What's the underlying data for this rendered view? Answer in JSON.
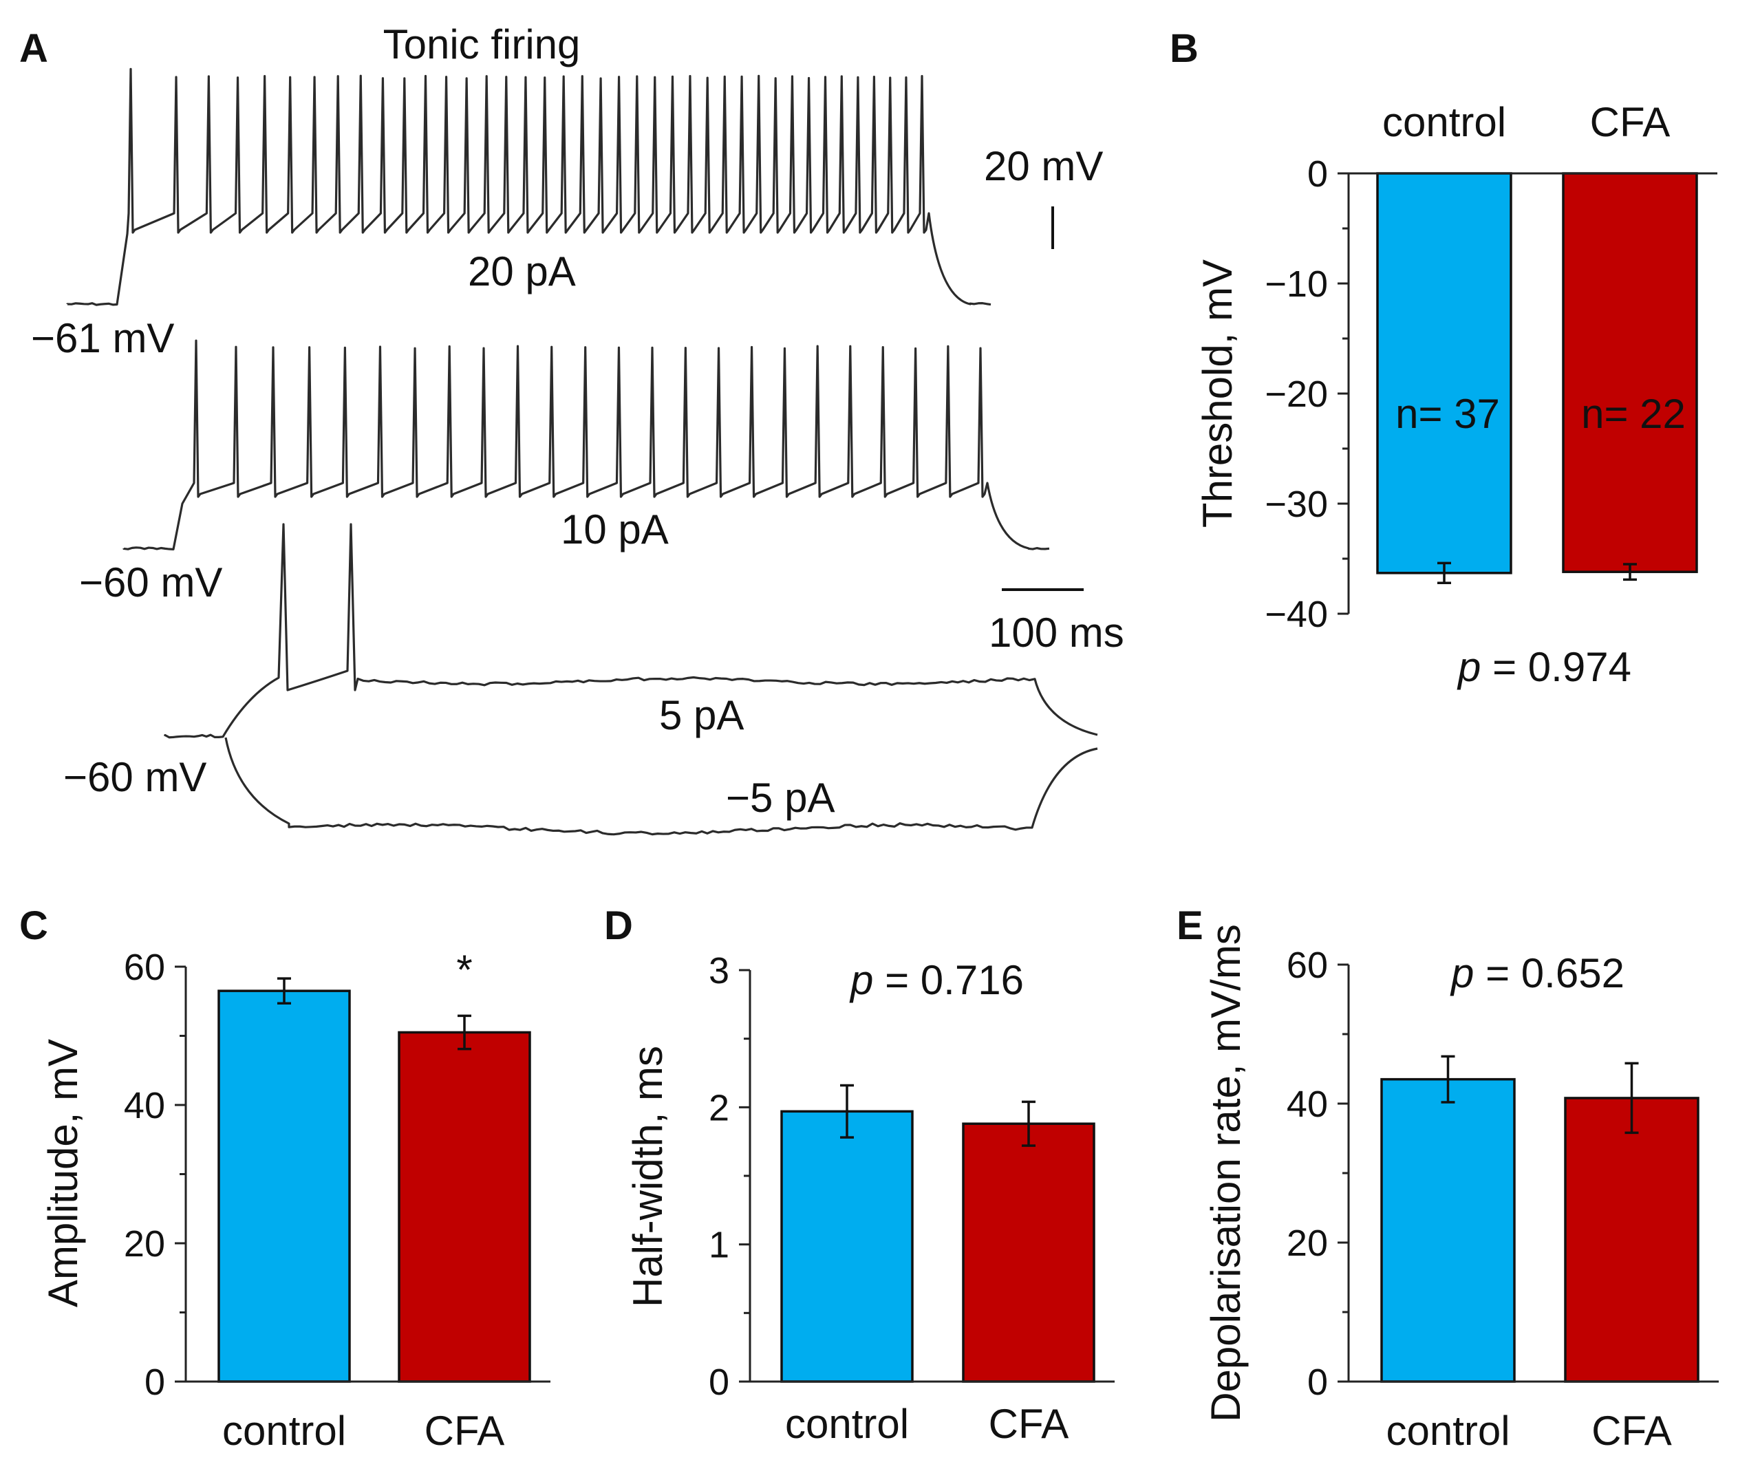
{
  "panel_A": {
    "letter": "A",
    "title": "Tonic firing",
    "traces": [
      {
        "stimulus": "20 pA",
        "resting": "−61 mV",
        "spikes": 40
      },
      {
        "stimulus": "10 pA",
        "resting": "−60 mV",
        "spikes": 24
      },
      {
        "stimulus": "5 pA",
        "resting": "−60 mV",
        "spikes": 2
      },
      {
        "stimulus": "−5 pA",
        "resting": "",
        "spikes": 0
      }
    ],
    "scale_voltage": "20 mV",
    "scale_time": "100 ms"
  },
  "chart_data": [
    {
      "id": "B",
      "type": "bar",
      "letter": "B",
      "categories": [
        "control",
        "CFA"
      ],
      "values": [
        -36.3,
        -36.2
      ],
      "errors": [
        0.9,
        0.7
      ],
      "colors": [
        "#00adef",
        "#c00000"
      ],
      "ylabel": "Threshold, mV",
      "ylim": [
        -40,
        0
      ],
      "yticks": [
        0,
        -10,
        -20,
        -30,
        -40
      ],
      "ytick_labels": [
        "0",
        "−10",
        "−20",
        "−30",
        "−40"
      ],
      "n_labels": [
        "n= 37",
        "n= 22"
      ],
      "p_prefix": "p",
      "p_value": " = 0.974",
      "significance": ""
    },
    {
      "id": "C",
      "type": "bar",
      "letter": "C",
      "categories": [
        "control",
        "CFA"
      ],
      "values": [
        56.5,
        50.5
      ],
      "errors": [
        1.8,
        2.4
      ],
      "colors": [
        "#00adef",
        "#c00000"
      ],
      "ylabel": "Amplitude, mV",
      "ylim": [
        0,
        60
      ],
      "yticks": [
        0,
        20,
        40,
        60
      ],
      "ytick_labels": [
        "0",
        "20",
        "40",
        "60"
      ],
      "p_prefix": "",
      "p_value": "",
      "significance": "*"
    },
    {
      "id": "D",
      "type": "bar",
      "letter": "D",
      "categories": [
        "control",
        "CFA"
      ],
      "values": [
        1.97,
        1.88
      ],
      "errors": [
        0.19,
        0.16
      ],
      "colors": [
        "#00adef",
        "#c00000"
      ],
      "ylabel": "Half-width, ms",
      "ylim": [
        0,
        3
      ],
      "yticks": [
        0,
        1,
        2,
        3
      ],
      "ytick_labels": [
        "0",
        "1",
        "2",
        "3"
      ],
      "p_prefix": "p",
      "p_value": " = 0.716",
      "significance": ""
    },
    {
      "id": "E",
      "type": "bar",
      "letter": "E",
      "categories": [
        "control",
        "CFA"
      ],
      "values": [
        43.5,
        40.8
      ],
      "errors": [
        3.3,
        5.0
      ],
      "colors": [
        "#00adef",
        "#c00000"
      ],
      "ylabel": "Depolarisation rate, mV/ms",
      "ylim": [
        0,
        60
      ],
      "yticks": [
        0,
        20,
        40,
        60
      ],
      "ytick_labels": [
        "0",
        "20",
        "40",
        "60"
      ],
      "p_prefix": "p",
      "p_value": " = 0.652",
      "significance": ""
    }
  ]
}
